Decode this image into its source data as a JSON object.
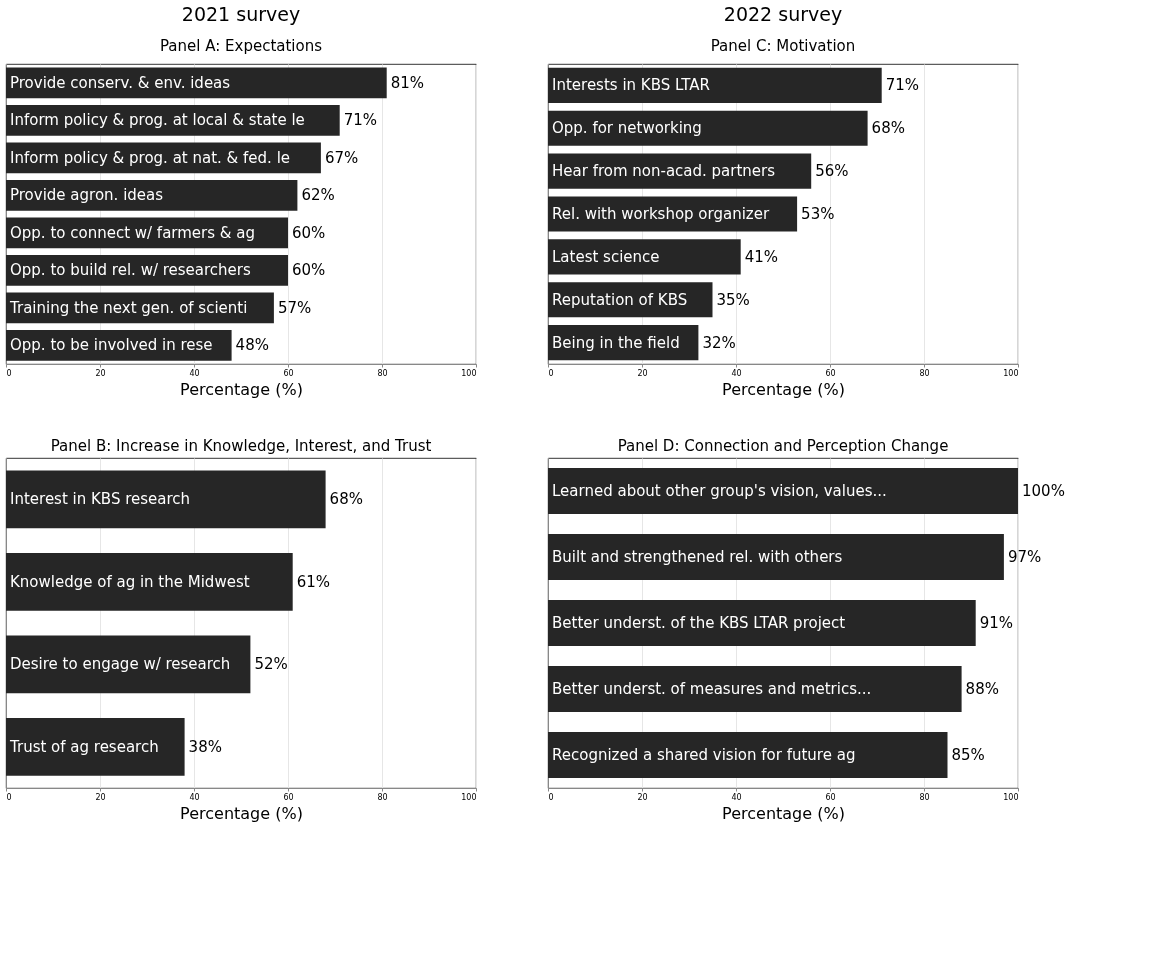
{
  "chart_data": [
    {
      "type": "bar",
      "orientation": "horizontal",
      "title": "Panel A: Expectations",
      "annotations": [
        "2021 survey"
      ],
      "xlabel": "Percentage (%)",
      "categories": [
        "Provide conserv. & env. ideas",
        "Inform policy & prog. at local & state le",
        "Inform policy & prog. at nat. & fed. le",
        "Provide agron. ideas",
        "Opp. to connect w/ farmers & ag",
        "Opp. to build rel. w/ researchers",
        "Training the next gen. of scienti",
        "Opp. to be involved in rese"
      ],
      "values": [
        81,
        71,
        67,
        62,
        60,
        60,
        57,
        48
      ],
      "value_labels": [
        "81%",
        "71%",
        "67%",
        "62%",
        "60%",
        "60%",
        "57%",
        "48%"
      ],
      "color": "#262626",
      "xlim": [
        0,
        100
      ],
      "xticks": [
        0,
        20,
        40,
        60,
        80,
        100
      ],
      "grid": "x",
      "tick_labels": "x"
    },
    {
      "type": "bar",
      "orientation": "horizontal",
      "title": "Panel C: Motivation",
      "annotations": [
        "2022 survey"
      ],
      "xlabel": "Percentage (%)",
      "categories": [
        "Interests in KBS LTAR",
        "Opp. for networking",
        "Hear from non-acad. partners",
        "Rel. with workshop organizer",
        "Latest science",
        "Reputation of KBS",
        "Being in the field"
      ],
      "values": [
        71,
        68,
        56,
        53,
        41,
        35,
        32
      ],
      "value_labels": [
        "71%",
        "68%",
        "56%",
        "53%",
        "41%",
        "35%",
        "32%"
      ],
      "color": "#262626",
      "xlim": [
        0,
        100
      ],
      "xticks": [
        0,
        20,
        40,
        60,
        80,
        100
      ],
      "grid": "x",
      "tick_labels": "x"
    },
    {
      "type": "bar",
      "orientation": "horizontal",
      "title": "Panel B: Increase in Knowledge, Interest, and Trust",
      "xlabel": "Percentage (%)",
      "categories": [
        "Interest in KBS research",
        "Knowledge of ag in the Midwest",
        "Desire to engage w/ research",
        "Trust of ag research"
      ],
      "values": [
        68,
        61,
        52,
        38
      ],
      "value_labels": [
        "68%",
        "61%",
        "52%",
        "38%"
      ],
      "color": "#262626",
      "xlim": [
        0,
        100
      ],
      "xticks": [
        0,
        20,
        40,
        60,
        80,
        100
      ],
      "grid": "x",
      "tick_labels": "x"
    },
    {
      "type": "bar",
      "orientation": "horizontal",
      "title": "Panel D: Connection and Perception Change",
      "xlabel": "Percentage (%)",
      "categories": [
        "Learned about other group's vision, values...",
        "Built and strengthened rel. with others",
        "Better underst. of the KBS LTAR project",
        "Better underst. of measures and metrics...",
        "Recognized a shared vision for future ag"
      ],
      "values": [
        100,
        97,
        91,
        88,
        85
      ],
      "value_labels": [
        "100%",
        "97%",
        "91%",
        "88%",
        "85%"
      ],
      "color": "#262626",
      "xlim": [
        0,
        100
      ],
      "xticks": [
        0,
        20,
        40,
        60,
        80,
        100
      ],
      "grid": "x",
      "tick_labels": "x"
    }
  ]
}
